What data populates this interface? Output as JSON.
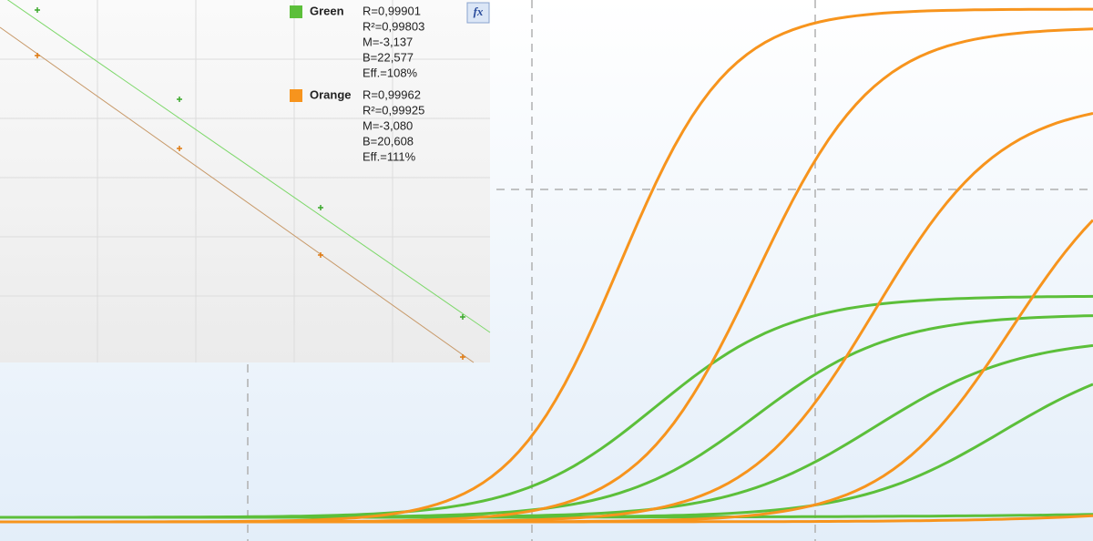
{
  "legend": [
    {
      "name": "Green",
      "color": "#5cbf3a",
      "stats": [
        "R=0,99901",
        "R²=0,99803",
        "M=-3,137",
        "B=22,577",
        "Eff.=108%"
      ]
    },
    {
      "name": "Orange",
      "color": "#f7941d",
      "stats": [
        "R=0,99962",
        "R²=0,99925",
        "M=-3,080",
        "B=20,608",
        "Eff.=111%"
      ]
    }
  ],
  "fx_button": "fx"
}
